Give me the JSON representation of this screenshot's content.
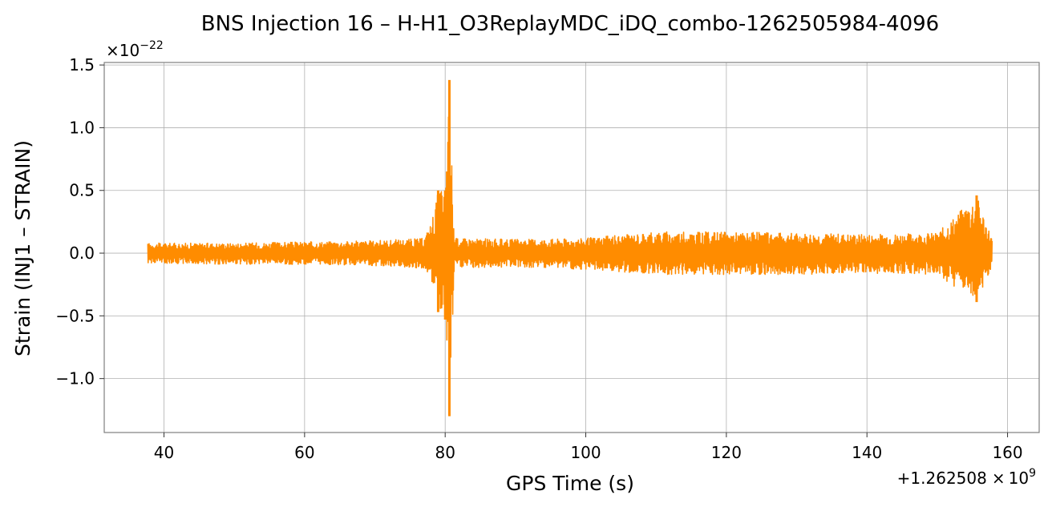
{
  "chart_data": {
    "type": "line",
    "title": "BNS Injection 16 – H-H1_O3ReplayMDC_iDQ_combo-1262505984-4096",
    "xlabel": "GPS Time (s)",
    "ylabel": "Strain (INJ1 – STRAIN)",
    "x_offset_label": "+1.262508×10^9",
    "x_offset_parts": {
      "prefix": "+1.262508",
      "times": "×",
      "base": "10",
      "exp": "9"
    },
    "y_multiplier_parts": {
      "times": "×",
      "base": "10",
      "exp": "−22"
    },
    "xlim": [
      31.5,
      164.5
    ],
    "ylim": [
      -1.43,
      1.52
    ],
    "x_ticks": [
      40,
      60,
      80,
      100,
      120,
      140,
      160
    ],
    "x_tick_labels": [
      "40",
      "60",
      "80",
      "100",
      "120",
      "140",
      "160"
    ],
    "y_ticks": [
      -1.0,
      -0.5,
      0.0,
      0.5,
      1.0,
      1.5
    ],
    "y_tick_labels": [
      "−1.0",
      "−0.5",
      "0.0",
      "0.5",
      "1.0",
      "1.5"
    ],
    "grid": true,
    "color": "#ff8c00",
    "series": [
      {
        "x_range": [
          37.7,
          157.8
        ],
        "envelope": [
          {
            "x": 37.7,
            "upper": 0.08,
            "lower": -0.08
          },
          {
            "x": 50,
            "upper": 0.08,
            "lower": -0.09
          },
          {
            "x": 60,
            "upper": 0.09,
            "lower": -0.09
          },
          {
            "x": 70,
            "upper": 0.1,
            "lower": -0.1
          },
          {
            "x": 77,
            "upper": 0.12,
            "lower": -0.12
          },
          {
            "x": 78,
            "upper": 0.25,
            "lower": -0.2
          },
          {
            "x": 79,
            "upper": 0.5,
            "lower": -0.47
          },
          {
            "x": 80,
            "upper": 0.5,
            "lower": -0.53
          },
          {
            "x": 80.6,
            "upper": 1.38,
            "lower": -1.3
          },
          {
            "x": 81.3,
            "upper": 0.12,
            "lower": -0.12
          },
          {
            "x": 90,
            "upper": 0.11,
            "lower": -0.11
          },
          {
            "x": 100,
            "upper": 0.12,
            "lower": -0.13
          },
          {
            "x": 110,
            "upper": 0.17,
            "lower": -0.17
          },
          {
            "x": 120,
            "upper": 0.17,
            "lower": -0.17
          },
          {
            "x": 130,
            "upper": 0.16,
            "lower": -0.17
          },
          {
            "x": 140,
            "upper": 0.15,
            "lower": -0.16
          },
          {
            "x": 150,
            "upper": 0.16,
            "lower": -0.17
          },
          {
            "x": 155.6,
            "upper": 0.46,
            "lower": -0.39
          },
          {
            "x": 157.8,
            "upper": 0.12,
            "lower": -0.12
          }
        ]
      }
    ]
  }
}
